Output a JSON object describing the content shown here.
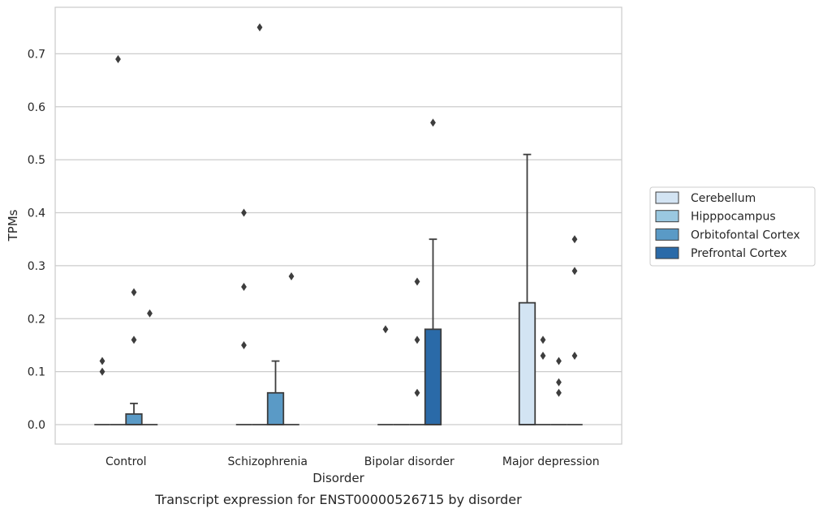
{
  "chart_data": {
    "type": "box",
    "title": "Transcript expression for ENST00000526715 by disorder",
    "xlabel": "Disorder",
    "ylabel": "TPMs",
    "ylim": [
      -0.037,
      0.792
    ],
    "yticks": [
      0.0,
      0.1,
      0.2,
      0.3,
      0.4,
      0.5,
      0.6,
      0.7
    ],
    "ytick_labels": [
      "0.0",
      "0.1",
      "0.2",
      "0.3",
      "0.4",
      "0.5",
      "0.6",
      "0.7"
    ],
    "grid": "horizontal",
    "legend_position": "right",
    "categories": [
      "Control",
      "Schizophrenia",
      "Bipolar disorder",
      "Major depression"
    ],
    "series": [
      {
        "name": "Cerebellum",
        "color": "#d3e4f3",
        "boxes": [
          {
            "q1": 0,
            "median": 0,
            "q3": 0,
            "whisker_low": 0,
            "whisker_high": 0,
            "outliers": [
              0.1,
              0.12
            ]
          },
          {
            "q1": 0,
            "median": 0,
            "q3": 0,
            "whisker_low": 0,
            "whisker_high": 0,
            "outliers": [
              0.15,
              0.26,
              0.4
            ]
          },
          {
            "q1": 0,
            "median": 0,
            "q3": 0,
            "whisker_low": 0,
            "whisker_high": 0,
            "outliers": [
              0.18
            ]
          },
          {
            "q1": 0,
            "median": 0,
            "q3": 0.23,
            "whisker_low": 0,
            "whisker_high": 0.51,
            "outliers": []
          }
        ]
      },
      {
        "name": "Hipppocampus",
        "color": "#9ac8e0",
        "boxes": [
          {
            "q1": 0,
            "median": 0,
            "q3": 0,
            "whisker_low": 0,
            "whisker_high": 0,
            "outliers": [
              0.69
            ]
          },
          {
            "q1": 0,
            "median": 0,
            "q3": 0,
            "whisker_low": 0,
            "whisker_high": 0,
            "outliers": [
              0.75
            ]
          },
          {
            "q1": 0,
            "median": 0,
            "q3": 0,
            "whisker_low": 0,
            "whisker_high": 0,
            "outliers": []
          },
          {
            "q1": 0,
            "median": 0,
            "q3": 0,
            "whisker_low": 0,
            "whisker_high": 0,
            "outliers": [
              0.13,
              0.16
            ]
          }
        ]
      },
      {
        "name": "Orbitofontal Cortex",
        "color": "#5a9ac6",
        "boxes": [
          {
            "q1": 0,
            "median": 0,
            "q3": 0.02,
            "whisker_low": 0,
            "whisker_high": 0.04,
            "outliers": [
              0.16,
              0.25
            ]
          },
          {
            "q1": 0,
            "median": 0,
            "q3": 0.06,
            "whisker_low": 0,
            "whisker_high": 0.12,
            "outliers": []
          },
          {
            "q1": 0,
            "median": 0,
            "q3": 0,
            "whisker_low": 0,
            "whisker_high": 0,
            "outliers": [
              0.06,
              0.16,
              0.27
            ]
          },
          {
            "q1": 0,
            "median": 0,
            "q3": 0,
            "whisker_low": 0,
            "whisker_high": 0,
            "outliers": [
              0.06,
              0.08,
              0.12
            ]
          }
        ]
      },
      {
        "name": "Prefrontal Cortex",
        "color": "#2a6aa8",
        "boxes": [
          {
            "q1": 0,
            "median": 0,
            "q3": 0,
            "whisker_low": 0,
            "whisker_high": 0,
            "outliers": [
              0.21
            ]
          },
          {
            "q1": 0,
            "median": 0,
            "q3": 0,
            "whisker_low": 0,
            "whisker_high": 0,
            "outliers": [
              0.28
            ]
          },
          {
            "q1": 0,
            "median": 0,
            "q3": 0.18,
            "whisker_low": 0,
            "whisker_high": 0.35,
            "outliers": [
              0.57
            ]
          },
          {
            "q1": 0,
            "median": 0,
            "q3": 0,
            "whisker_low": 0,
            "whisker_high": 0,
            "outliers": [
              0.13,
              0.29,
              0.35
            ]
          }
        ]
      }
    ]
  }
}
